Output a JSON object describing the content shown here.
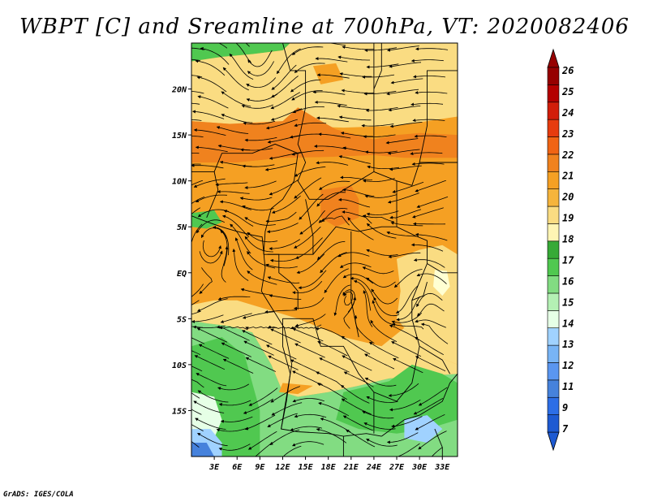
{
  "title": "WBPT [C] and Sreamline at 700hPa, VT: 2020082406",
  "credit": "GrADS: IGES/COLA",
  "map": {
    "lat_range": [
      -20,
      25
    ],
    "lon_range": [
      0,
      35
    ],
    "lat_ticks": [
      {
        "value": 20,
        "label": "20N"
      },
      {
        "value": 15,
        "label": "15N"
      },
      {
        "value": 10,
        "label": "10N"
      },
      {
        "value": 5,
        "label": "5N"
      },
      {
        "value": 0,
        "label": "EQ"
      },
      {
        "value": -5,
        "label": "5S"
      },
      {
        "value": -10,
        "label": "10S"
      },
      {
        "value": -15,
        "label": "15S"
      }
    ],
    "lon_ticks": [
      {
        "value": 3,
        "label": "3E"
      },
      {
        "value": 6,
        "label": "6E"
      },
      {
        "value": 9,
        "label": "9E"
      },
      {
        "value": 12,
        "label": "12E"
      },
      {
        "value": 15,
        "label": "15E"
      },
      {
        "value": 18,
        "label": "18E"
      },
      {
        "value": 21,
        "label": "21E"
      },
      {
        "value": 24,
        "label": "24E"
      },
      {
        "value": 27,
        "label": "27E"
      },
      {
        "value": 30,
        "label": "30E"
      },
      {
        "value": 33,
        "label": "33E"
      }
    ],
    "regions": [
      {
        "name": "north-green",
        "color": "#50c850",
        "shape": "poly",
        "pts": [
          [
            0,
            25
          ],
          [
            13,
            25
          ],
          [
            12,
            24.2
          ],
          [
            8,
            23.8
          ],
          [
            4,
            23.5
          ],
          [
            0,
            23
          ]
        ]
      },
      {
        "name": "north-east-light",
        "color": "#82dc82",
        "shape": "poly",
        "pts": [
          [
            13,
            25
          ],
          [
            20,
            25
          ],
          [
            19,
            24.3
          ],
          [
            16,
            24.3
          ]
        ]
      },
      {
        "name": "north-yellow-band",
        "color": "#fadc82",
        "shape": "poly",
        "pts": [
          [
            0,
            23
          ],
          [
            4,
            23.5
          ],
          [
            8,
            23.8
          ],
          [
            12,
            24.2
          ],
          [
            13,
            25
          ],
          [
            35,
            25
          ],
          [
            35,
            17
          ],
          [
            27,
            16
          ],
          [
            20,
            15.8
          ],
          [
            12,
            16
          ],
          [
            5,
            16.2
          ],
          [
            0,
            16.5
          ]
        ]
      },
      {
        "name": "north-orange-patch",
        "color": "#f5a023",
        "shape": "poly",
        "pts": [
          [
            16,
            22.5
          ],
          [
            19,
            22.8
          ],
          [
            20,
            21
          ],
          [
            17,
            20.5
          ]
        ]
      },
      {
        "name": "sahel-deep-band",
        "color": "#f0821e",
        "shape": "poly",
        "pts": [
          [
            0,
            16.5
          ],
          [
            5,
            16.2
          ],
          [
            12,
            16.5
          ],
          [
            14,
            18
          ],
          [
            16,
            17
          ],
          [
            19,
            15.6
          ],
          [
            24,
            14.5
          ],
          [
            27,
            15
          ],
          [
            30,
            15.2
          ],
          [
            35,
            15
          ],
          [
            35,
            12.5
          ],
          [
            28,
            12.5
          ],
          [
            24,
            12.8
          ],
          [
            18,
            12.6
          ],
          [
            12,
            12.5
          ],
          [
            6,
            12
          ],
          [
            0,
            12
          ]
        ]
      },
      {
        "name": "central-orange",
        "color": "#f5a023",
        "shape": "poly",
        "pts": [
          [
            0,
            12
          ],
          [
            6,
            12
          ],
          [
            12,
            12.5
          ],
          [
            18,
            12.6
          ],
          [
            24,
            12.8
          ],
          [
            28,
            12.5
          ],
          [
            35,
            12.5
          ],
          [
            35,
            2
          ],
          [
            33,
            3
          ],
          [
            30,
            2.5
          ],
          [
            29,
            -3
          ],
          [
            28,
            -6
          ],
          [
            25,
            -8
          ],
          [
            20,
            -7
          ],
          [
            14,
            -5
          ],
          [
            10,
            -4
          ],
          [
            6,
            -3
          ],
          [
            3,
            -3
          ],
          [
            0,
            -3.5
          ]
        ]
      },
      {
        "name": "central-deep-patch",
        "color": "#f0821e",
        "shape": "poly",
        "pts": [
          [
            17,
            9
          ],
          [
            21,
            9.5
          ],
          [
            22,
            8
          ],
          [
            22,
            6
          ],
          [
            19,
            5
          ],
          [
            17,
            6
          ]
        ]
      },
      {
        "name": "east-yellow-band",
        "color": "#fadc82",
        "shape": "poly",
        "pts": [
          [
            27,
            1.5
          ],
          [
            30,
            2.5
          ],
          [
            33,
            3
          ],
          [
            35,
            2
          ],
          [
            35,
            -10
          ],
          [
            32,
            -9
          ],
          [
            29,
            -7
          ],
          [
            27,
            -5
          ],
          [
            27.5,
            -2
          ]
        ]
      },
      {
        "name": "lake-victoria",
        "color": "#ffffd2",
        "shape": "poly",
        "pts": [
          [
            32,
            0.3
          ],
          [
            33.6,
            0.2
          ],
          [
            34,
            -1.5
          ],
          [
            33,
            -2.5
          ],
          [
            31.8,
            -1.5
          ]
        ]
      },
      {
        "name": "sw-yellow-belt",
        "color": "#fadc82",
        "shape": "poly",
        "pts": [
          [
            0,
            -3.5
          ],
          [
            3,
            -3
          ],
          [
            6,
            -3
          ],
          [
            10,
            -4
          ],
          [
            14,
            -5
          ],
          [
            20,
            -7
          ],
          [
            25,
            -8
          ],
          [
            28,
            -6
          ],
          [
            29,
            -7
          ],
          [
            32,
            -9
          ],
          [
            35,
            -10
          ],
          [
            35,
            -11
          ],
          [
            26,
            -11.5
          ],
          [
            22,
            -12.3
          ],
          [
            18,
            -13
          ],
          [
            14,
            -13.5
          ],
          [
            12,
            -13
          ],
          [
            10.5,
            -10
          ],
          [
            8,
            -6.5
          ],
          [
            5,
            -5.8
          ],
          [
            2,
            -5.5
          ],
          [
            0,
            -5.2
          ]
        ]
      },
      {
        "name": "south-light-green",
        "color": "#82dc82",
        "shape": "poly",
        "pts": [
          [
            0,
            -5.2
          ],
          [
            2,
            -5.5
          ],
          [
            5,
            -5.8
          ],
          [
            8,
            -6.5
          ],
          [
            10.5,
            -10
          ],
          [
            12,
            -13
          ],
          [
            14,
            -13.5
          ],
          [
            18,
            -13
          ],
          [
            22,
            -12.3
          ],
          [
            26,
            -11.5
          ],
          [
            35,
            -11
          ],
          [
            35,
            -20
          ],
          [
            0,
            -20
          ]
        ]
      },
      {
        "name": "south-mid-green",
        "color": "#50c850",
        "shape": "poly",
        "pts": [
          [
            20,
            -13
          ],
          [
            26,
            -11.8
          ],
          [
            29,
            -10
          ],
          [
            33,
            -11
          ],
          [
            35,
            -12
          ],
          [
            35,
            -16
          ],
          [
            31,
            -17
          ],
          [
            27,
            -17.5
          ],
          [
            22,
            -17
          ],
          [
            19,
            -16
          ]
        ]
      },
      {
        "name": "south-west-green",
        "color": "#50c850",
        "shape": "poly",
        "pts": [
          [
            0,
            -8
          ],
          [
            4,
            -7
          ],
          [
            7,
            -9
          ],
          [
            9,
            -15
          ],
          [
            9,
            -20
          ],
          [
            0,
            -20
          ]
        ]
      },
      {
        "name": "sw-pale",
        "color": "#e6ffe6",
        "shape": "poly",
        "pts": [
          [
            0,
            -13
          ],
          [
            3,
            -13.5
          ],
          [
            4,
            -16
          ],
          [
            3,
            -18
          ],
          [
            0,
            -18
          ]
        ]
      },
      {
        "name": "sw-blue-blob",
        "color": "#a0d2ff",
        "shape": "poly",
        "pts": [
          [
            0,
            -17
          ],
          [
            2.5,
            -17
          ],
          [
            4,
            -18.5
          ],
          [
            4,
            -20
          ],
          [
            0,
            -20
          ]
        ]
      },
      {
        "name": "sw-deep-blue",
        "color": "#4682dc",
        "shape": "poly",
        "pts": [
          [
            0,
            -18.5
          ],
          [
            2,
            -18.5
          ],
          [
            3,
            -20
          ],
          [
            0,
            -20
          ]
        ]
      },
      {
        "name": "se-blue-blob",
        "color": "#a0d2ff",
        "shape": "poly",
        "pts": [
          [
            28,
            -16
          ],
          [
            31,
            -15.5
          ],
          [
            33,
            -17
          ],
          [
            31,
            -18.5
          ],
          [
            28,
            -18
          ]
        ]
      },
      {
        "name": "west-green-patch",
        "color": "#50c850",
        "shape": "poly",
        "pts": [
          [
            0,
            6.5
          ],
          [
            3,
            6.8
          ],
          [
            4,
            5.5
          ],
          [
            2,
            4.8
          ],
          [
            0,
            5
          ]
        ]
      },
      {
        "name": "south-orange-tongue",
        "color": "#f5a023",
        "shape": "poly",
        "pts": [
          [
            12,
            -12
          ],
          [
            16,
            -12.3
          ],
          [
            14,
            -13.2
          ],
          [
            11.5,
            -13
          ]
        ]
      }
    ],
    "colorbar": {
      "colors": [
        "#1e5ad2",
        "#2d6ee6",
        "#4682dc",
        "#5a96f0",
        "#78b4f5",
        "#a0d2ff",
        "#e6ffe6",
        "#b4f0b4",
        "#82dc82",
        "#50c850",
        "#37aa37",
        "#fff5b4",
        "#fadc82",
        "#f5b43c",
        "#f5a023",
        "#f0821e",
        "#f06414",
        "#e63c0f",
        "#d21e0a",
        "#b40000",
        "#960000"
      ],
      "labels": [
        "7",
        "9",
        "11",
        "12",
        "13",
        "14",
        "15",
        "16",
        "17",
        "18",
        "19",
        "20",
        "21",
        "22",
        "23",
        "24",
        "25",
        "26"
      ]
    }
  }
}
